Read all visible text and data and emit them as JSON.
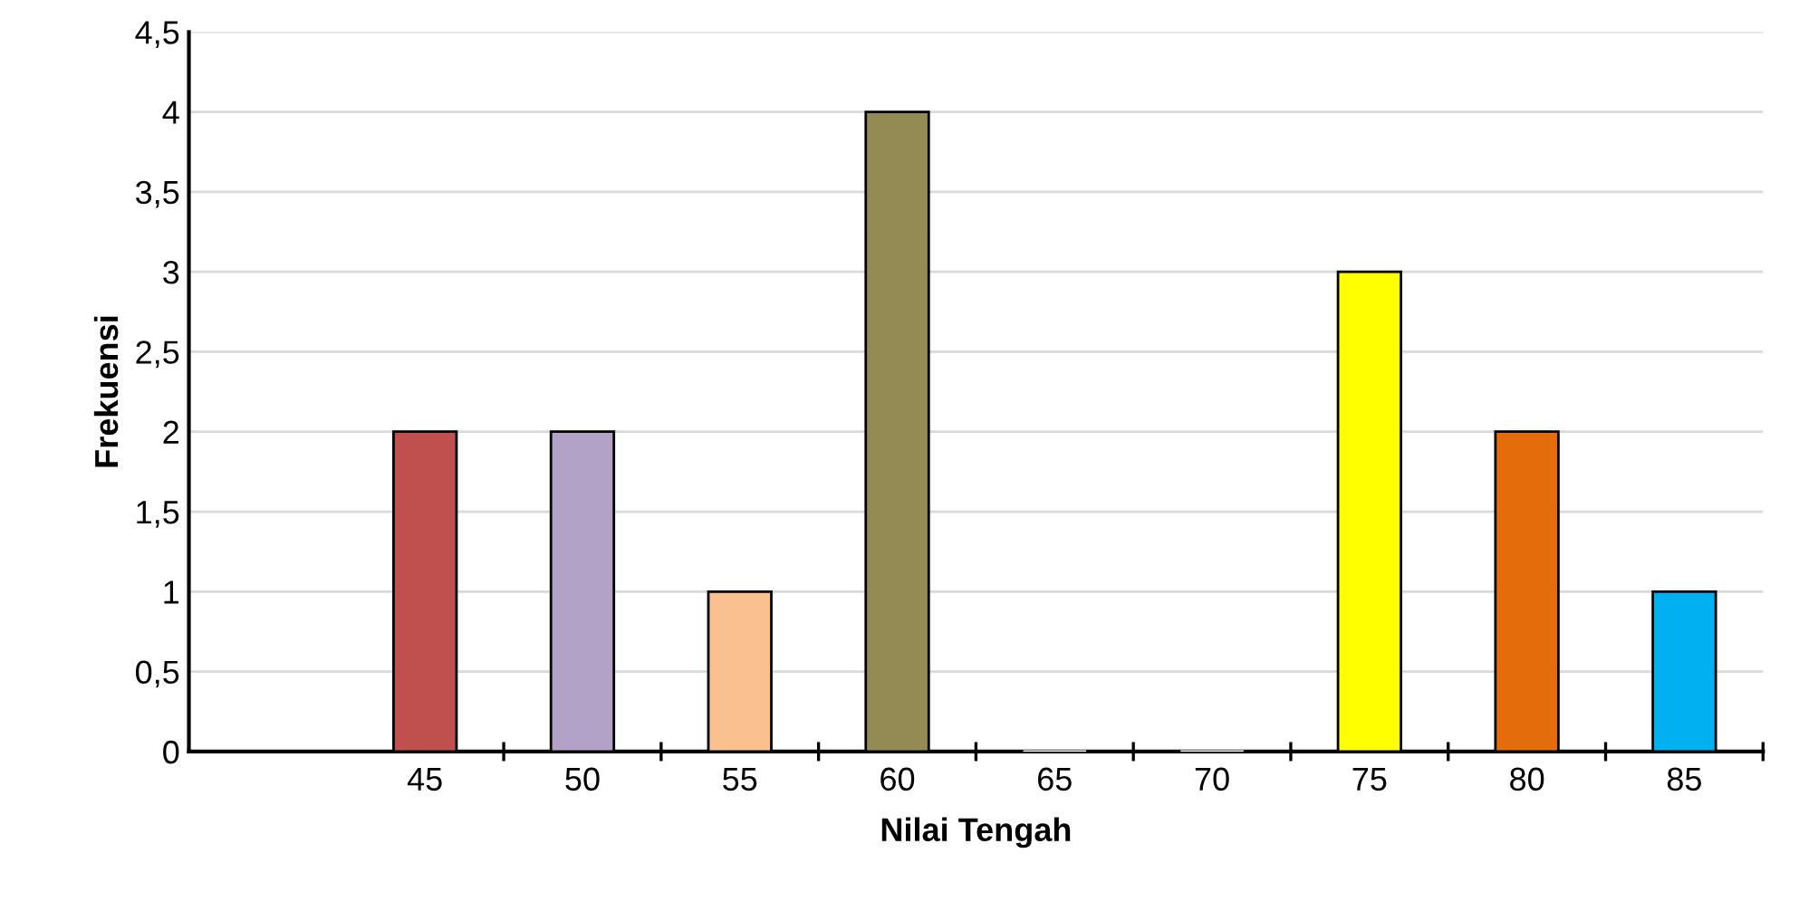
{
  "chart_data": {
    "type": "bar",
    "xlabel": "Nilai Tengah",
    "ylabel": "Frekuensi",
    "categories": [
      "45",
      "50",
      "55",
      "60",
      "65",
      "70",
      "75",
      "80",
      "85"
    ],
    "values": [
      2,
      2,
      1,
      4,
      0,
      0,
      3,
      2,
      1
    ],
    "colors": [
      "#c0504d",
      "#b2a2c7",
      "#fac090",
      "#948a54",
      "#ffffff",
      "#ffffff",
      "#ffff00",
      "#e46c0a",
      "#00b0f0"
    ],
    "ylim": [
      0,
      4.5
    ],
    "yticks": [
      0,
      {
        "value": 0.5,
        "label": "0,5"
      },
      1,
      {
        "value": 1.5,
        "label": "1,5"
      },
      2,
      {
        "value": 2.5,
        "label": "2,5"
      },
      3,
      {
        "value": 3.5,
        "label": "3,5"
      },
      4,
      {
        "value": 4.5,
        "label": "4,5"
      }
    ],
    "grid": "y"
  }
}
